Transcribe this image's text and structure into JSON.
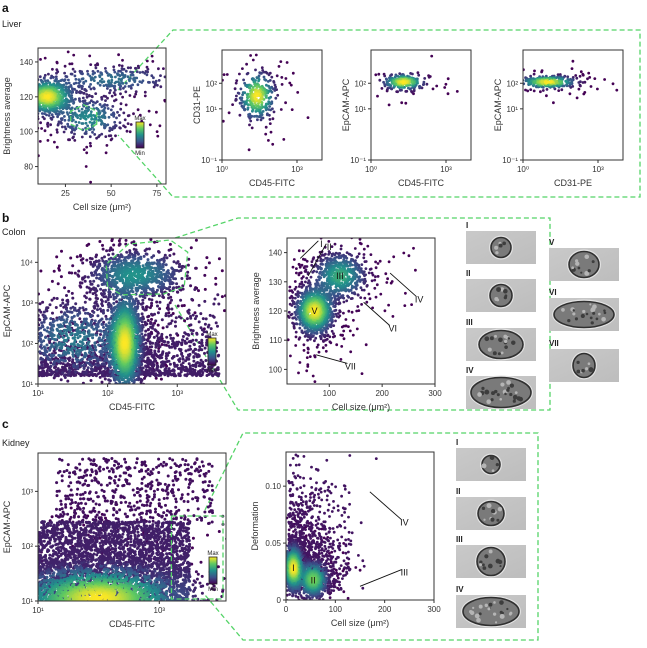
{
  "figure": {
    "panels": [
      {
        "letter": "a",
        "tissue": "Liver"
      },
      {
        "letter": "b",
        "tissue": "Colon"
      },
      {
        "letter": "c",
        "tissue": "Kidney"
      }
    ],
    "colorbar": {
      "max_label": "Max",
      "min_label": "Min",
      "colormap": [
        "#440154",
        "#3b528b",
        "#21918c",
        "#5ec962",
        "#fde725"
      ]
    },
    "gate_color": "#55d468",
    "cell_images": {
      "colon": [
        "I",
        "II",
        "III",
        "IV",
        "V",
        "VI",
        "VII"
      ],
      "kidney": [
        "I",
        "II",
        "III",
        "IV"
      ]
    }
  },
  "chart_data": [
    {
      "id": "a-main",
      "type": "scatter",
      "title": "",
      "xlabel": "Cell size (μm²)",
      "ylabel": "Brightness average",
      "xlim": [
        10,
        80
      ],
      "ylim": [
        70,
        148
      ],
      "xscale": "linear",
      "yscale": "linear",
      "xticks": [
        25,
        50,
        75
      ],
      "xtick_labels": [
        "25",
        "50",
        "75"
      ],
      "yticks": [
        80,
        100,
        120,
        140
      ],
      "ytick_labels": [
        "80",
        "100",
        "120",
        "140"
      ],
      "density_clusters": [
        {
          "x": 15,
          "y": 120,
          "sx": 7,
          "sy": 5,
          "w": 1.0
        },
        {
          "x": 38,
          "y": 108,
          "sx": 10,
          "sy": 6,
          "w": 0.4
        },
        {
          "x": 50,
          "y": 130,
          "sx": 18,
          "sy": 4,
          "w": 0.3
        }
      ],
      "gate": "hexagon around (35,108)",
      "colorbar": true
    },
    {
      "id": "a-sub1",
      "type": "scatter",
      "xlabel": "CD45-FITC",
      "ylabel": "CD31-PE",
      "xlim_log10": [
        0,
        4
      ],
      "ylim_log10": [
        -1,
        3.3
      ],
      "xtick_labels": [
        "10⁰",
        "10³"
      ],
      "ytick_labels": [
        "10⁻¹",
        "10¹",
        "10²"
      ],
      "density_clusters": [
        {
          "lx": 1.4,
          "ly": 1.5,
          "sx": 0.35,
          "sy": 0.45,
          "w": 1.0
        }
      ]
    },
    {
      "id": "a-sub2",
      "type": "scatter",
      "xlabel": "CD45-FITC",
      "ylabel": "EpCAM-APC",
      "xlim_log10": [
        0,
        4
      ],
      "ylim_log10": [
        -1,
        3.3
      ],
      "xtick_labels": [
        "10⁰",
        "10³"
      ],
      "ytick_labels": [
        "10⁻¹",
        "10¹",
        "10²"
      ],
      "density_clusters": [
        {
          "lx": 1.3,
          "ly": 2.05,
          "sx": 0.4,
          "sy": 0.15,
          "w": 1.0
        }
      ]
    },
    {
      "id": "a-sub3",
      "type": "scatter",
      "xlabel": "CD31-PE",
      "ylabel": "EpCAM-APC",
      "xlim_log10": [
        0,
        4
      ],
      "ylim_log10": [
        -1,
        3.3
      ],
      "xtick_labels": [
        "10⁰",
        "10³"
      ],
      "ytick_labels": [
        "10⁻¹",
        "10¹",
        "10²"
      ],
      "density_clusters": [
        {
          "lx": 1.0,
          "ly": 2.05,
          "sx": 0.55,
          "sy": 0.12,
          "w": 1.0
        }
      ]
    },
    {
      "id": "b-main",
      "type": "scatter",
      "xlabel": "CD45-FITC",
      "ylabel": "EpCAM-APC",
      "xlim_log10": [
        1,
        3.7
      ],
      "ylim_log10": [
        1,
        4.6
      ],
      "xtick_labels": [
        "10¹",
        "10²",
        "10³"
      ],
      "ytick_labels": [
        "10¹",
        "10²",
        "10³",
        "10⁴"
      ],
      "density_clusters": [
        {
          "lx": 2.25,
          "ly": 2.0,
          "sx": 0.12,
          "sy": 0.6,
          "w": 1.0
        },
        {
          "lx": 2.4,
          "ly": 3.7,
          "sx": 0.35,
          "sy": 0.3,
          "w": 0.45
        },
        {
          "lx": 1.5,
          "ly": 2.1,
          "sx": 0.4,
          "sy": 0.5,
          "w": 0.35
        }
      ],
      "gate": "polygon around EpCAM-high population",
      "colorbar": true
    },
    {
      "id": "b-sub",
      "type": "scatter",
      "xlabel": "Cell size (μm²)",
      "ylabel": "Brightness average",
      "xlim": [
        20,
        300
      ],
      "ylim": [
        95,
        145
      ],
      "xtick_labels": [
        "100",
        "200",
        "300"
      ],
      "ytick_labels": [
        "100",
        "110",
        "120",
        "130",
        "140"
      ],
      "density_clusters": [
        {
          "x": 72,
          "y": 120,
          "sx": 18,
          "sy": 4,
          "w": 1.0
        },
        {
          "x": 120,
          "y": 132,
          "sx": 25,
          "sy": 4,
          "w": 0.55
        }
      ],
      "annotations": [
        {
          "label": "I",
          "point": [
            45,
            138
          ],
          "text": [
            85,
            143
          ]
        },
        {
          "label": "II",
          "point": [
            60,
            132
          ],
          "text": [
            100,
            142
          ]
        },
        {
          "label": "III",
          "point": [
            120,
            132
          ],
          "text": [
            120,
            132
          ]
        },
        {
          "label": "IV",
          "point": [
            215,
            133
          ],
          "text": [
            270,
            124
          ]
        },
        {
          "label": "V",
          "point": [
            72,
            120
          ],
          "text": [
            72,
            120
          ]
        },
        {
          "label": "VI",
          "point": [
            165,
            123
          ],
          "text": [
            220,
            114
          ]
        },
        {
          "label": "VII",
          "point": [
            75,
            105
          ],
          "text": [
            140,
            101
          ]
        }
      ]
    },
    {
      "id": "c-main",
      "type": "scatter",
      "xlabel": "CD45-FITC",
      "ylabel": "EpCAM-APC",
      "xlim_log10": [
        1,
        4.1
      ],
      "ylim_log10": [
        1,
        3.7
      ],
      "xtick_labels": [
        "10¹",
        "10³"
      ],
      "ytick_labels": [
        "10¹",
        "10²",
        "10³"
      ],
      "density_clusters": [
        {
          "lx": 2.0,
          "ly": 1.05,
          "sx": 0.7,
          "sy": 0.3,
          "w": 1.0
        }
      ],
      "gate": "rectangle CD45 > ~10^3.3, EpCAM < ~10^2.55",
      "colorbar": true
    },
    {
      "id": "c-sub",
      "type": "scatter",
      "xlabel": "Cell size (μm²)",
      "ylabel": "Deformation",
      "xlim": [
        0,
        300
      ],
      "ylim": [
        0,
        0.13
      ],
      "xtick_labels": [
        "0",
        "100",
        "200",
        "300"
      ],
      "ytick_labels": [
        "0",
        "0.05",
        "0.10"
      ],
      "density_clusters": [
        {
          "x": 15,
          "y": 0.028,
          "sx": 10,
          "sy": 0.01,
          "w": 1.0
        },
        {
          "x": 55,
          "y": 0.018,
          "sx": 15,
          "sy": 0.008,
          "w": 0.75
        }
      ],
      "annotations": [
        {
          "label": "I",
          "point": [
            15,
            0.028
          ],
          "text": [
            15,
            0.028
          ]
        },
        {
          "label": "II",
          "point": [
            55,
            0.017
          ],
          "text": [
            55,
            0.017
          ]
        },
        {
          "label": "III",
          "point": [
            150,
            0.012
          ],
          "text": [
            240,
            0.024
          ]
        },
        {
          "label": "IV",
          "point": [
            170,
            0.095
          ],
          "text": [
            240,
            0.068
          ]
        }
      ]
    }
  ]
}
